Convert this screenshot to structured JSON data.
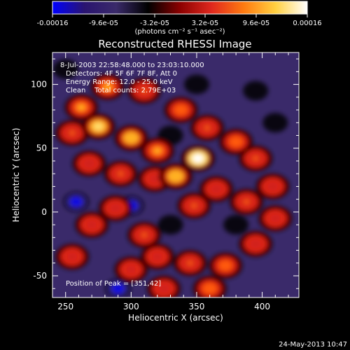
{
  "colorbar": {
    "ticks": [
      "-0.00016",
      "-9.6e-05",
      "-3.2e-05",
      "3.2e-05",
      "9.6e-05",
      "0.00016"
    ],
    "unit_label": "(photons cm⁻² s⁻¹ asec⁻²)",
    "colormap": [
      "#0000ff",
      "#2a1470",
      "#3a2a6a",
      "#000000",
      "#8b0000",
      "#e0281e",
      "#ff7a10",
      "#ffd040",
      "#ffffff"
    ]
  },
  "chart_data": {
    "type": "heatmap",
    "title": "Reconstructed RHESSI Image",
    "xlabel": "Heliocentric X (arcsec)",
    "ylabel": "Heliocentric Y (arcsec)",
    "xlim": [
      240,
      428
    ],
    "ylim": [
      -67,
      125
    ],
    "x_ticks": [
      "250",
      "300",
      "350",
      "400"
    ],
    "y_ticks": [
      "100",
      "50",
      "0",
      "-50"
    ],
    "x_tick_values": [
      250,
      300,
      350,
      400
    ],
    "y_tick_values": [
      100,
      50,
      0,
      -50
    ],
    "annotations": [
      "8-Jul-2003 22:58:48.000 to 23:03:10.000",
      "Detectors: 4F 5F 6F 7F 8F, Att 0",
      "Energy Range: 12.0 - 25.0 keV",
      "Clean    Total counts: 2.79E+03"
    ],
    "peak_label": "Position of Peak = [351,42]",
    "peak": {
      "x": 351,
      "y": 42
    },
    "blobs": [
      {
        "x": 351,
        "y": 42,
        "v": 1.0
      },
      {
        "x": 334,
        "y": 28,
        "v": 0.8
      },
      {
        "x": 320,
        "y": 48,
        "v": 0.7
      },
      {
        "x": 300,
        "y": 58,
        "v": 0.75
      },
      {
        "x": 275,
        "y": 67,
        "v": 0.85
      },
      {
        "x": 262,
        "y": 82,
        "v": 0.7
      },
      {
        "x": 282,
        "y": 98,
        "v": 0.7
      },
      {
        "x": 310,
        "y": 95,
        "v": 0.55
      },
      {
        "x": 338,
        "y": 80,
        "v": 0.6
      },
      {
        "x": 358,
        "y": 66,
        "v": 0.55
      },
      {
        "x": 380,
        "y": 55,
        "v": 0.6
      },
      {
        "x": 395,
        "y": 42,
        "v": 0.55
      },
      {
        "x": 408,
        "y": 20,
        "v": 0.5
      },
      {
        "x": 388,
        "y": 8,
        "v": 0.55
      },
      {
        "x": 365,
        "y": 18,
        "v": 0.5
      },
      {
        "x": 348,
        "y": 5,
        "v": 0.55
      },
      {
        "x": 318,
        "y": 26,
        "v": 0.45
      },
      {
        "x": 292,
        "y": 30,
        "v": 0.55
      },
      {
        "x": 268,
        "y": 38,
        "v": 0.5
      },
      {
        "x": 255,
        "y": 62,
        "v": 0.55
      },
      {
        "x": 288,
        "y": 3,
        "v": 0.5
      },
      {
        "x": 270,
        "y": -10,
        "v": 0.45
      },
      {
        "x": 255,
        "y": -35,
        "v": 0.45
      },
      {
        "x": 310,
        "y": -18,
        "v": 0.55
      },
      {
        "x": 320,
        "y": -35,
        "v": 0.45
      },
      {
        "x": 345,
        "y": -40,
        "v": 0.55
      },
      {
        "x": 372,
        "y": -42,
        "v": 0.6
      },
      {
        "x": 360,
        "y": -60,
        "v": 0.65
      },
      {
        "x": 325,
        "y": -60,
        "v": 0.5
      },
      {
        "x": 300,
        "y": -45,
        "v": 0.4
      },
      {
        "x": 395,
        "y": -25,
        "v": 0.5
      },
      {
        "x": 410,
        "y": -5,
        "v": 0.45
      },
      {
        "x": 300,
        "y": 5,
        "v": -0.85
      },
      {
        "x": 258,
        "y": 8,
        "v": -0.8
      },
      {
        "x": 290,
        "y": -60,
        "v": -0.8
      },
      {
        "x": 330,
        "y": 60,
        "v": -0.5
      },
      {
        "x": 350,
        "y": 100,
        "v": -0.5
      },
      {
        "x": 395,
        "y": 95,
        "v": -0.5
      },
      {
        "x": 380,
        "y": -10,
        "v": -0.45
      },
      {
        "x": 410,
        "y": 70,
        "v": -0.4
      },
      {
        "x": 250,
        "y": 112,
        "v": -0.35
      },
      {
        "x": 330,
        "y": -10,
        "v": -0.4
      }
    ]
  },
  "footer": {
    "timestamp": "24-May-2013 10:47"
  }
}
